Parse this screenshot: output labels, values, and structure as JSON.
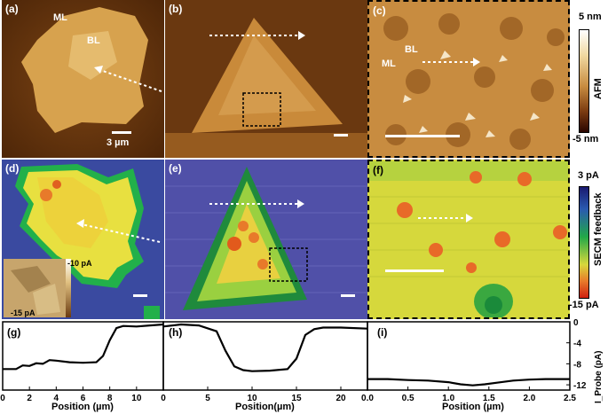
{
  "panels_top": {
    "a": {
      "label": "(a)",
      "ml": "ML",
      "bl": "BL",
      "scale": "3 µm"
    },
    "b": {
      "label": "(b)"
    },
    "c": {
      "label": "(c)",
      "ml": "ML",
      "bl": "BL"
    }
  },
  "afm_colorbar": {
    "max": "5 nm",
    "min": "-5 nm",
    "title": "AFM"
  },
  "panels_mid": {
    "d": {
      "label": "(d)",
      "inset_max": "-10 pA",
      "inset_min": "-15 pA"
    },
    "e": {
      "label": "(e)"
    },
    "f": {
      "label": "(f)"
    }
  },
  "secm_colorbar": {
    "max": "3 pA",
    "min": "-15 pA",
    "title": "SECM feedback"
  },
  "chart_data": [
    {
      "type": "line",
      "panel": "(g)",
      "xlabel": "Position (µm)",
      "xlim": [
        0,
        12
      ],
      "ylim": [
        -13,
        0
      ],
      "xticks": [
        "0",
        "2",
        "4",
        "6",
        "8",
        "10"
      ],
      "x": [
        0,
        1,
        1.5,
        2,
        2.5,
        3,
        3.5,
        4,
        5,
        6,
        7,
        7.5,
        8,
        8.5,
        9,
        10,
        11,
        12
      ],
      "y": [
        -9,
        -9,
        -8.3,
        -8.4,
        -7.9,
        -8.0,
        -7.3,
        -7.4,
        -7.7,
        -7.8,
        -7.7,
        -6.5,
        -3.5,
        -1.2,
        -0.8,
        -0.9,
        -0.7,
        -0.5
      ]
    },
    {
      "type": "line",
      "panel": "(h)",
      "xlabel": "Position(µm)",
      "xlim": [
        0,
        23
      ],
      "ylim": [
        -13,
        0
      ],
      "xticks": [
        "0",
        "5",
        "10",
        "15",
        "20"
      ],
      "x": [
        0,
        2,
        4,
        6,
        7,
        8,
        9,
        10,
        12,
        14,
        15,
        16,
        17,
        18,
        20,
        23
      ],
      "y": [
        -0.9,
        -0.5,
        -0.7,
        -1.8,
        -5.5,
        -8.5,
        -9.2,
        -9.4,
        -9.3,
        -9.0,
        -7.0,
        -2.5,
        -1.4,
        -1.1,
        -1.1,
        -1.3
      ]
    },
    {
      "type": "line",
      "panel": "(i)",
      "xlabel": "Position (µm)",
      "ylabel": "I_Probe (pA)",
      "xlim": [
        0,
        2.5
      ],
      "ylim": [
        -13,
        0
      ],
      "xticks": [
        "0.0",
        "0.5",
        "1.0",
        "1.5",
        "2.0",
        "2.5"
      ],
      "yticks": [
        "0",
        "-4",
        "-8",
        "-12"
      ],
      "x": [
        0,
        0.25,
        0.5,
        0.75,
        1.0,
        1.15,
        1.3,
        1.45,
        1.6,
        1.8,
        2.0,
        2.2,
        2.5
      ],
      "y": [
        -10.9,
        -10.9,
        -11.1,
        -11.2,
        -11.5,
        -11.9,
        -12.1,
        -11.9,
        -11.6,
        -11.2,
        -11.0,
        -10.9,
        -10.9
      ]
    }
  ]
}
